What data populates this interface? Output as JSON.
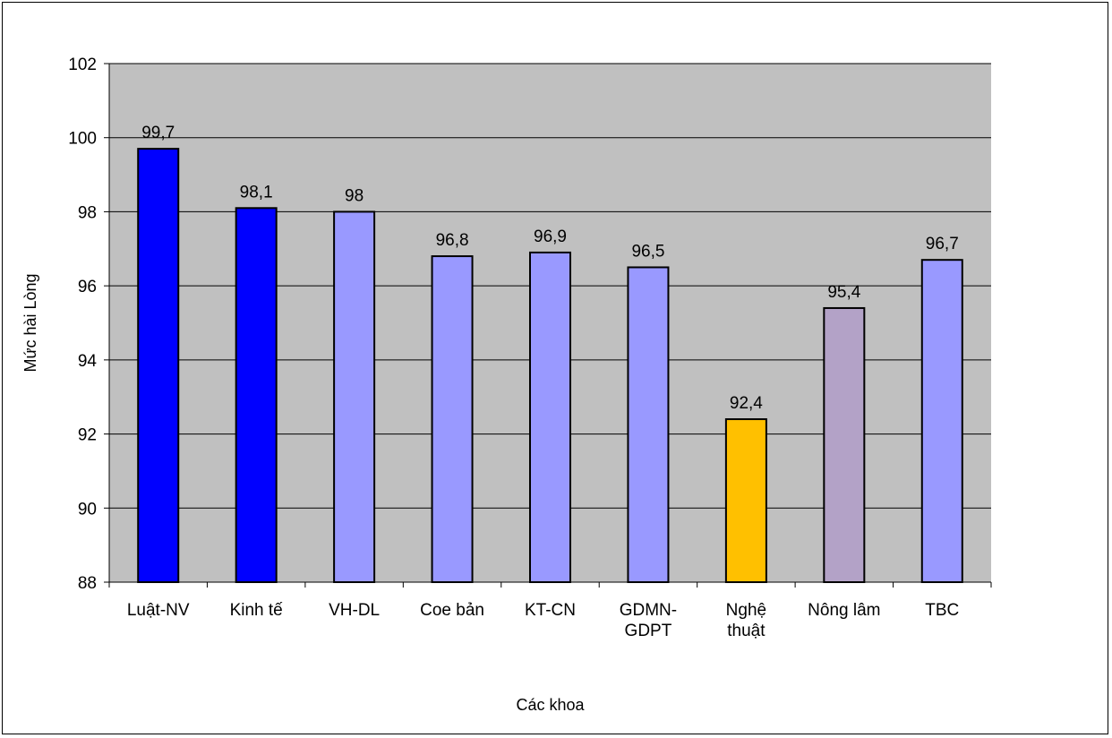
{
  "chart_data": {
    "type": "bar",
    "title": "",
    "xlabel": "Các khoa",
    "ylabel": "Mức hài Lòng",
    "ylim": [
      88,
      102
    ],
    "yticks": [
      88,
      90,
      92,
      94,
      96,
      98,
      100,
      102
    ],
    "grid": true,
    "legend": "none",
    "categories": [
      [
        "Luật-NV"
      ],
      [
        "Kinh tế"
      ],
      [
        "VH-DL"
      ],
      [
        "Coe bản"
      ],
      [
        "KT-CN"
      ],
      [
        "GDMN-",
        "GDPT"
      ],
      [
        "Nghệ",
        "thuật"
      ],
      [
        "Nông lâm"
      ],
      [
        "TBC"
      ]
    ],
    "values": [
      99.7,
      98.1,
      98,
      96.8,
      96.9,
      96.5,
      92.4,
      95.4,
      96.7
    ],
    "value_labels": [
      "99,7",
      "98,1",
      "98",
      "96,8",
      "96,9",
      "96,5",
      "92,4",
      "95,4",
      "96,7"
    ],
    "colors": [
      "#0000ff",
      "#0000ff",
      "#9999ff",
      "#9999ff",
      "#9999ff",
      "#9999ff",
      "#ffc000",
      "#b3a2c7",
      "#9999ff"
    ],
    "plot_background": "#c0c0c0"
  }
}
